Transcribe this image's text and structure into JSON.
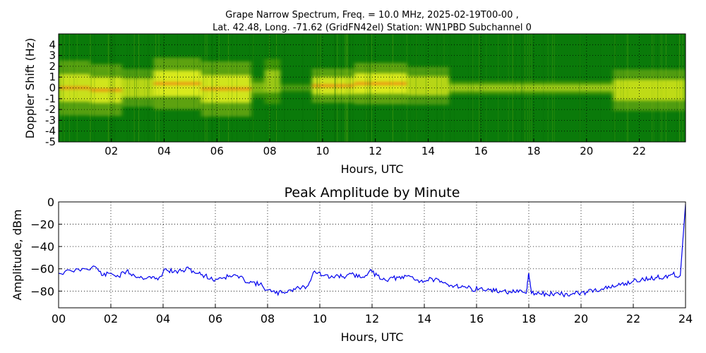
{
  "chart_data": [
    {
      "type": "heatmap",
      "title_line1": "Grape Narrow Spectrum, Freq. = 10.0 MHz, 2025-02-19T00-00 ,",
      "title_line2": "Lat.  42.48, Long. -71.62 (GridFN42el) Station: WN1PBD Subchannel 0",
      "xlabel": "Hours, UTC",
      "ylabel": "Doppler Shift (Hz)",
      "xlim": [
        0,
        23.75
      ],
      "ylim": [
        -5,
        5
      ],
      "xticks": [
        "02",
        "04",
        "06",
        "08",
        "10",
        "12",
        "14",
        "16",
        "18",
        "20",
        "22"
      ],
      "xtick_values": [
        2,
        4,
        6,
        8,
        10,
        12,
        14,
        16,
        18,
        20,
        22
      ],
      "yticks": [
        "-5",
        "-4",
        "-3",
        "-2",
        "-1",
        "0",
        "1",
        "2",
        "3",
        "4"
      ],
      "ytick_values": [
        -5,
        -4,
        -3,
        -2,
        -1,
        0,
        1,
        2,
        3,
        4
      ],
      "colors": {
        "background": "#0a7a0a",
        "mid": "#a8c810",
        "high": "#ffff20",
        "peak": "#ff2000"
      },
      "grid": true,
      "bands": [
        {
          "x0": 0.0,
          "x1": 1.2,
          "center": 0.0,
          "spread": 1.6,
          "intensity": 0.85
        },
        {
          "x0": 1.2,
          "x1": 2.4,
          "center": -0.2,
          "spread": 1.5,
          "intensity": 0.9
        },
        {
          "x0": 2.4,
          "x1": 3.6,
          "center": 0.0,
          "spread": 1.1,
          "intensity": 0.75
        },
        {
          "x0": 3.6,
          "x1": 5.4,
          "center": 0.4,
          "spread": 1.5,
          "intensity": 0.95
        },
        {
          "x0": 5.4,
          "x1": 7.3,
          "center": -0.1,
          "spread": 1.6,
          "intensity": 0.9
        },
        {
          "x0": 7.3,
          "x1": 7.8,
          "center": 0.0,
          "spread": 0.6,
          "intensity": 0.45
        },
        {
          "x0": 7.8,
          "x1": 8.4,
          "center": 0.6,
          "spread": 1.3,
          "intensity": 0.6
        },
        {
          "x0": 8.4,
          "x1": 9.6,
          "center": 0.0,
          "spread": 0.3,
          "intensity": 0.25
        },
        {
          "x0": 9.6,
          "x1": 11.2,
          "center": 0.2,
          "spread": 1.0,
          "intensity": 0.9
        },
        {
          "x0": 11.2,
          "x1": 13.2,
          "center": 0.4,
          "spread": 1.2,
          "intensity": 0.95
        },
        {
          "x0": 13.2,
          "x1": 14.8,
          "center": 0.2,
          "spread": 1.1,
          "intensity": 0.75
        },
        {
          "x0": 14.8,
          "x1": 21.0,
          "center": 0.0,
          "spread": 0.4,
          "intensity": 0.6
        },
        {
          "x0": 21.0,
          "x1": 23.75,
          "center": -0.2,
          "spread": 1.2,
          "intensity": 0.8
        }
      ]
    },
    {
      "type": "line",
      "title": "Peak Amplitude by Minute",
      "xlabel": "Hours, UTC",
      "ylabel": "Amplitude, dBm",
      "xlim": [
        0,
        24
      ],
      "ylim": [
        -95,
        0
      ],
      "xticks": [
        "00",
        "02",
        "04",
        "06",
        "08",
        "10",
        "12",
        "14",
        "16",
        "18",
        "20",
        "22",
        "24"
      ],
      "xtick_values": [
        0,
        2,
        4,
        6,
        8,
        10,
        12,
        14,
        16,
        18,
        20,
        22,
        24
      ],
      "yticks": [
        "0",
        "−20",
        "−40",
        "−60",
        "−80"
      ],
      "ytick_values": [
        0,
        -20,
        -40,
        -60,
        -80
      ],
      "grid": true,
      "line_color": "#0000ee",
      "series": [
        {
          "x": [
            0,
            0.5,
            1.0,
            1.4,
            1.7,
            2.0,
            2.3,
            2.6,
            2.9,
            3.2,
            3.5,
            3.8,
            4.1,
            4.4,
            4.7,
            5.0,
            5.3,
            5.6,
            5.9,
            6.2,
            6.5,
            6.8,
            7.1,
            7.4,
            7.7,
            8.0,
            8.3,
            8.6,
            8.9,
            9.2,
            9.5,
            9.8,
            10.1,
            10.4,
            10.7,
            11.0,
            11.3,
            11.6,
            11.9,
            12.2,
            12.5,
            12.8,
            13.1,
            13.4,
            13.7,
            14.0,
            14.3,
            14.6,
            14.9,
            15.2,
            15.5,
            15.8,
            16.1,
            16.4,
            16.7,
            17.0,
            17.3,
            17.6,
            17.9,
            18.0,
            18.1,
            18.4,
            18.7,
            19.0,
            19.3,
            19.6,
            19.9,
            20.2,
            20.5,
            20.8,
            21.1,
            21.4,
            21.7,
            22.0,
            22.3,
            22.6,
            22.9,
            23.2,
            23.5,
            23.8,
            24.0
          ],
          "y": [
            -64,
            -62,
            -60,
            -58,
            -66,
            -64,
            -67,
            -62,
            -66,
            -68,
            -67,
            -70,
            -60,
            -63,
            -62,
            -60,
            -64,
            -66,
            -70,
            -68,
            -67,
            -66,
            -70,
            -72,
            -74,
            -79,
            -82,
            -81,
            -79,
            -77,
            -76,
            -62,
            -66,
            -68,
            -66,
            -67,
            -65,
            -68,
            -62,
            -66,
            -70,
            -68,
            -69,
            -66,
            -70,
            -71,
            -69,
            -72,
            -74,
            -75,
            -76,
            -78,
            -78,
            -79,
            -80,
            -80,
            -81,
            -81,
            -82,
            -64,
            -82,
            -82,
            -83,
            -82,
            -83,
            -83,
            -82,
            -81,
            -79,
            -78,
            -77,
            -75,
            -73,
            -71,
            -70,
            -69,
            -68,
            -67,
            -65,
            -66,
            -2
          ]
        }
      ]
    }
  ]
}
